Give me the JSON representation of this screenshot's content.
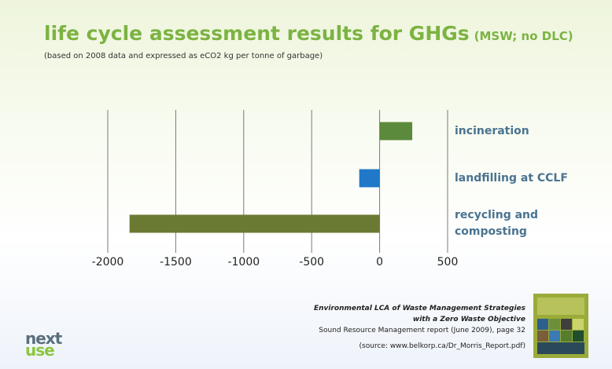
{
  "chart_data": {
    "type": "bar",
    "orientation": "horizontal",
    "title": "life cycle assessment results for GHGs",
    "title_suffix": "(MSW; no DLC)",
    "subtitle": "(based on 2008 data and expressed as eCO2 kg per tonne of garbage)",
    "categories": [
      "incineration",
      "landfilling at CCLF",
      "recycling and composting"
    ],
    "values": [
      240,
      -150,
      -1840
    ],
    "colors": [
      "#5b8a3c",
      "#1f78c8",
      "#6b7a32"
    ],
    "xlim": [
      -2000,
      500
    ],
    "xticks": [
      -2000,
      -1500,
      -1000,
      -500,
      0,
      500
    ],
    "grid": true
  },
  "citation": {
    "title_line1": "Environmental LCA of Waste Management Strategies",
    "title_line2": "with a Zero Waste Objective",
    "report": "Sound Resource Management report (June 2009), page 32",
    "source": "(source: www.belkorp.ca/Dr_Morris_Report.pdf)"
  },
  "logo": {
    "line1": "next",
    "line2": "use"
  }
}
